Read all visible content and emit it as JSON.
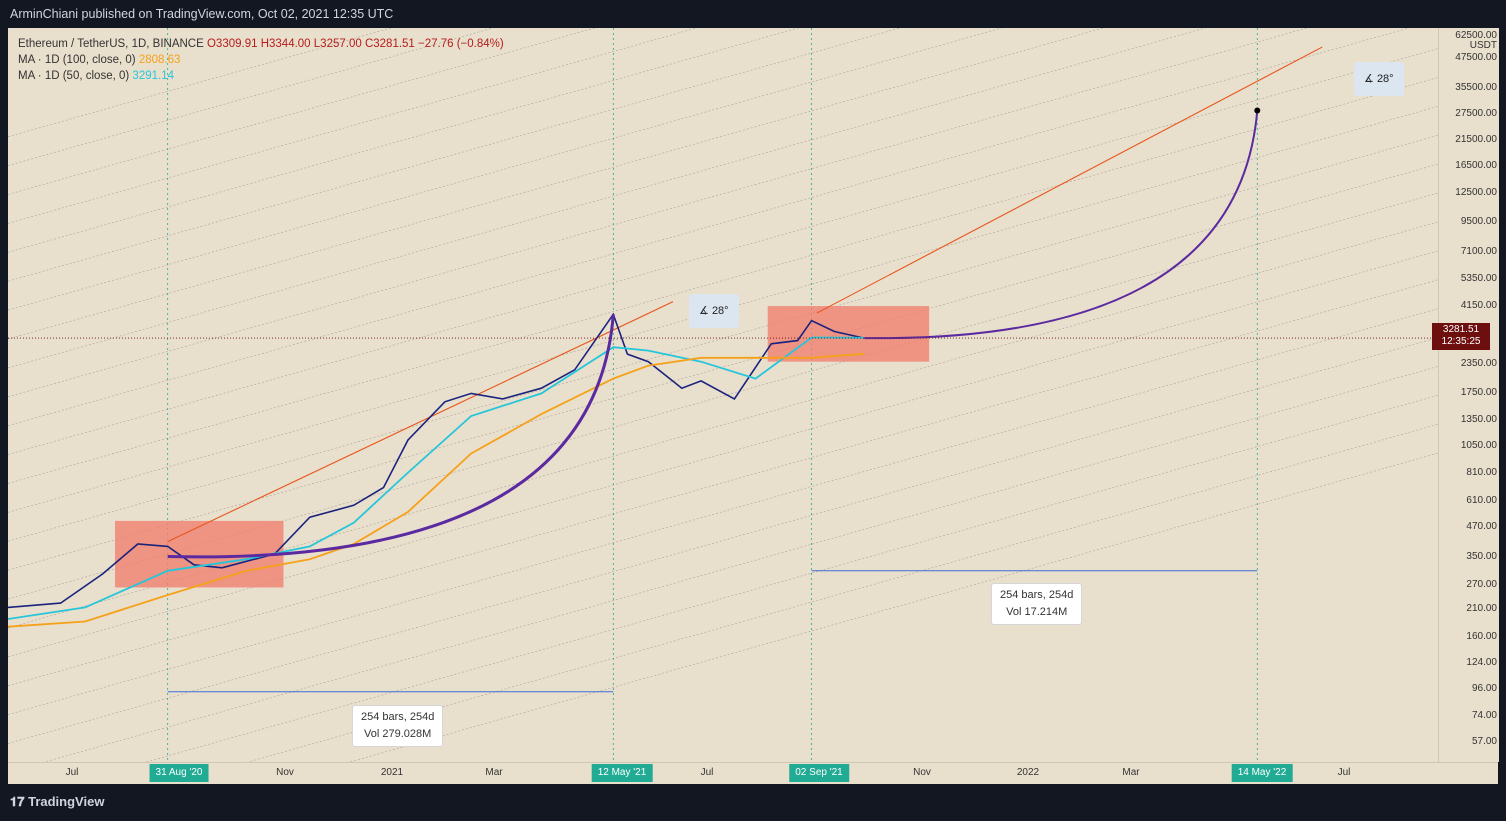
{
  "header": {
    "published": "ArminChiani published on TradingView.com, Oct 02, 2021 12:35 UTC"
  },
  "legend": {
    "symbol": "Ethereum / TetherUS, 1D, BINANCE",
    "open": "O3309.91",
    "high": "H3344.00",
    "low": "L3257.00",
    "close": "C3281.51",
    "change": "−27.76 (−0.84%)",
    "ma100_label": "MA · 1D (100, close, 0)",
    "ma100_value": "2808.63",
    "ma50_label": "MA · 1D (50, close, 0)",
    "ma50_value": "3291.14"
  },
  "price_axis": {
    "unit": "USDT",
    "ticks": [
      "62500.00",
      "47500.00",
      "35500.00",
      "27500.00",
      "21500.00",
      "16500.00",
      "12500.00",
      "9500.00",
      "7100.00",
      "5350.00",
      "4150.00",
      "2350.00",
      "1750.00",
      "1350.00",
      "1050.00",
      "810.00",
      "610.00",
      "470.00",
      "350.00",
      "270.00",
      "210.00",
      "160.00",
      "124.00",
      "96.00",
      "74.00",
      "57.00"
    ],
    "current_price": "3281.51",
    "countdown": "12:35:25"
  },
  "time_axis": {
    "ticks": [
      "Jul",
      "Nov",
      "2021",
      "Mar",
      "Jul",
      "Nov",
      "2022",
      "Mar",
      "Jul"
    ],
    "highlights": [
      "31 Aug '20",
      "12 May '21",
      "02 Sep '21",
      "14 May '22"
    ]
  },
  "annotations": {
    "range1": {
      "bars": "254 bars, 254d",
      "vol": "Vol 279.028M"
    },
    "range2": {
      "bars": "254 bars, 254d",
      "vol": "Vol 17.214M"
    },
    "angle1": "28°",
    "angle2": "28°"
  },
  "footer": {
    "brand": "TradingView"
  },
  "colors": {
    "background": "#e9dfcd",
    "ma100": "#f5a11a",
    "ma50": "#26c6da",
    "candles": "#1a237e",
    "trend": "#e8561c",
    "arc": "#5b2aa0",
    "range": "#3f6fd8",
    "box": "#f08070"
  },
  "chart_data": {
    "type": "line",
    "title": "Ethereum / TetherUS, 1D, BINANCE",
    "yscale": "log",
    "y_unit": "USDT",
    "ylim": [
      50,
      70000
    ],
    "xlim": [
      "2020-06-01",
      "2022-08-25"
    ],
    "grid": false,
    "legend_position": "top-left",
    "series": [
      {
        "name": "Ethereum / TetherUS",
        "x": [
          "2020-06-01",
          "2020-07-01",
          "2020-07-25",
          "2020-08-14",
          "2020-08-31",
          "2020-09-15",
          "2020-10-01",
          "2020-10-31",
          "2020-11-20",
          "2020-12-15",
          "2021-01-01",
          "2021-01-15",
          "2021-02-05",
          "2021-02-20",
          "2021-03-10",
          "2021-04-01",
          "2021-04-20",
          "2021-05-12",
          "2021-05-20",
          "2021-06-01",
          "2021-06-20",
          "2021-07-01",
          "2021-07-20",
          "2021-08-10",
          "2021-08-25",
          "2021-09-02",
          "2021-09-15",
          "2021-10-02"
        ],
        "values": [
          230,
          240,
          320,
          430,
          420,
          350,
          340,
          390,
          560,
          630,
          750,
          1200,
          1750,
          1900,
          1800,
          2000,
          2400,
          4150,
          2800,
          2600,
          2000,
          2150,
          1800,
          3100,
          3200,
          3900,
          3500,
          3281.51
        ]
      },
      {
        "name": "MA · 1D (50, close, 0)",
        "x": [
          "2020-06-01",
          "2020-07-15",
          "2020-08-31",
          "2020-10-15",
          "2020-11-20",
          "2020-12-15",
          "2021-01-15",
          "2021-02-20",
          "2021-04-01",
          "2021-05-12",
          "2021-06-01",
          "2021-07-01",
          "2021-08-01",
          "2021-09-02",
          "2021-10-02"
        ],
        "values": [
          205,
          230,
          330,
          370,
          420,
          530,
          870,
          1520,
          1900,
          3000,
          2900,
          2600,
          2200,
          3300,
          3291.14
        ]
      },
      {
        "name": "MA · 1D (100, close, 0)",
        "x": [
          "2020-06-01",
          "2020-07-15",
          "2020-08-31",
          "2020-10-15",
          "2020-11-20",
          "2020-12-15",
          "2021-01-15",
          "2021-02-20",
          "2021-04-01",
          "2021-05-12",
          "2021-06-01",
          "2021-07-01",
          "2021-08-01",
          "2021-09-02",
          "2021-10-02"
        ],
        "values": [
          190,
          200,
          260,
          330,
          370,
          430,
          590,
          1050,
          1550,
          2200,
          2500,
          2700,
          2700,
          2700,
          2808.63
        ]
      }
    ],
    "ranges": [
      {
        "from": "2020-08-31",
        "to": "2021-05-12",
        "bars": "254 bars, 254d",
        "vol": "Vol 279.028M"
      },
      {
        "from": "2021-09-02",
        "to": "2022-05-14",
        "bars": "254 bars, 254d",
        "vol": "Vol 17.214M"
      }
    ],
    "projection": {
      "from": "2021-10-02",
      "to": "2022-05-14",
      "target_price": 31000
    }
  }
}
